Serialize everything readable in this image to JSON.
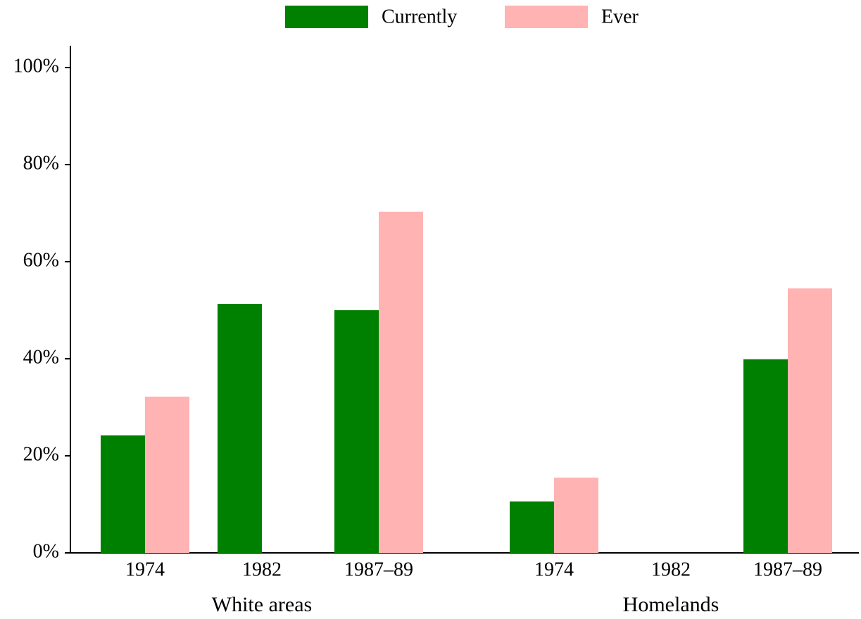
{
  "chart_data": {
    "type": "bar",
    "groups": [
      {
        "label": "White areas",
        "categories": [
          "1974",
          "1982",
          "1987–89"
        ]
      },
      {
        "label": "Homelands",
        "categories": [
          "1974",
          "1982",
          "1987–89"
        ]
      }
    ],
    "series": [
      {
        "name": "Currently",
        "color": "#008000",
        "values": [
          24.2,
          51.3,
          50.0,
          10.6,
          null,
          39.9
        ]
      },
      {
        "name": "Ever",
        "color": "#ffb3b3",
        "values": [
          32.2,
          null,
          70.3,
          15.5,
          null,
          54.5
        ]
      }
    ],
    "ylim": [
      0,
      104.5
    ],
    "yticks": [
      {
        "value": 0,
        "label": "0%"
      },
      {
        "value": 20,
        "label": "20%"
      },
      {
        "value": 40,
        "label": "40%"
      },
      {
        "value": 60,
        "label": "60%"
      },
      {
        "value": 80,
        "label": "80%"
      },
      {
        "value": 100,
        "label": "100%"
      }
    ],
    "legend": "top",
    "grid": false
  }
}
